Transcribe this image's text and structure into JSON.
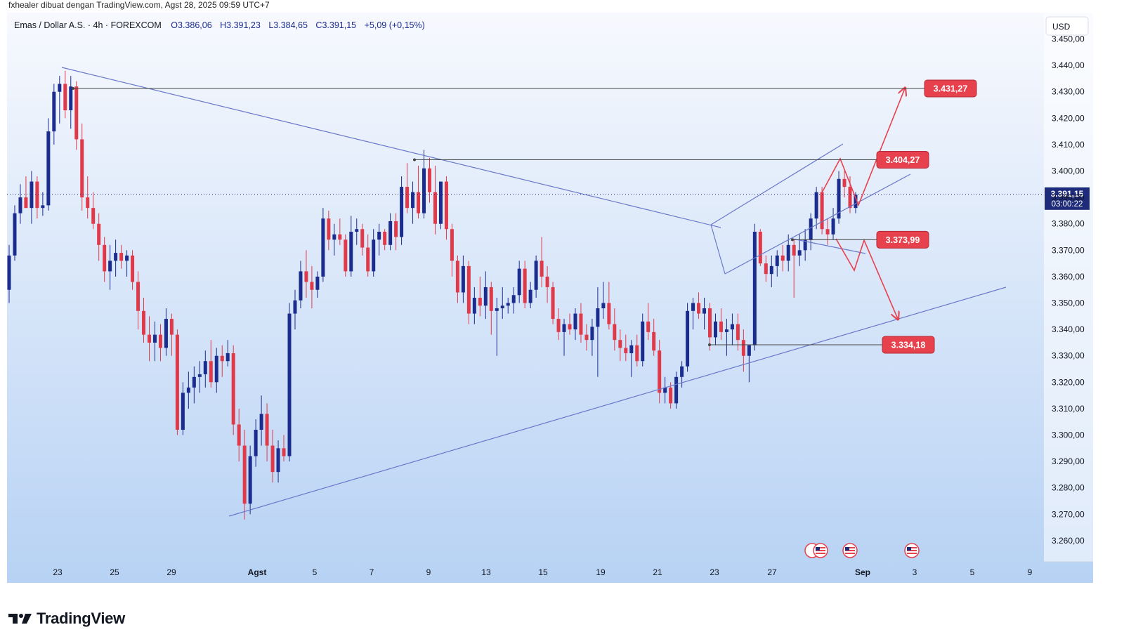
{
  "attribution": "fxhealer dibuat dengan TradingView.com, Agst 28, 2025 09:59 UTC+7",
  "brand": "TradingView",
  "colors": {
    "up": "#1b2c8f",
    "down": "#e03a4a",
    "line": "#6070c8",
    "hline": "#444444",
    "label": "#e8414e",
    "bg_top": "#f6f8fe",
    "bg_bottom": "#b9d4f5",
    "price_tag": "#1e2a7a"
  },
  "chart_data": {
    "type": "candlestick",
    "header": {
      "symbol": "Emas / Dollar A.S.",
      "interval": "4h",
      "exchange": "FOREXCOM",
      "open": "O3.386,06",
      "high": "H3.391,23",
      "low": "L3.384,65",
      "close": "C3.391,15",
      "change": "+5,09 (+0,15%)"
    },
    "currency": "USD",
    "y_axis": {
      "ylim": [
        3252,
        3452
      ],
      "ticks": [
        "3.260,00",
        "3.270,00",
        "3.280,00",
        "3.290,00",
        "3.300,00",
        "3.310,00",
        "3.320,00",
        "3.330,00",
        "3.340,00",
        "3.350,00",
        "3.360,00",
        "3.370,00",
        "3.380,00",
        "3.390,00",
        "3.400,00",
        "3.410,00",
        "3.420,00",
        "3.430,00",
        "3.440,00",
        "3.450,00"
      ]
    },
    "x_axis": {
      "labels": [
        "23",
        "25",
        "29",
        "Agst",
        "5",
        "7",
        "9",
        "13",
        "15",
        "19",
        "21",
        "23",
        "27",
        "Sep",
        "3",
        "5",
        "9"
      ]
    },
    "candles": [
      [
        3355,
        3372,
        3350,
        3368
      ],
      [
        3368,
        3387,
        3366,
        3384
      ],
      [
        3384,
        3395,
        3380,
        3390
      ],
      [
        3390,
        3398,
        3386,
        3386
      ],
      [
        3386,
        3400,
        3380,
        3396
      ],
      [
        3396,
        3398,
        3382,
        3386
      ],
      [
        3386,
        3392,
        3383,
        3387
      ],
      [
        3387,
        3420,
        3385,
        3415
      ],
      [
        3415,
        3433,
        3410,
        3430
      ],
      [
        3430,
        3436,
        3418,
        3433
      ],
      [
        3433,
        3438,
        3420,
        3423
      ],
      [
        3423,
        3436,
        3416,
        3432
      ],
      [
        3432,
        3434,
        3408,
        3412
      ],
      [
        3412,
        3418,
        3385,
        3390
      ],
      [
        3390,
        3398,
        3382,
        3386
      ],
      [
        3386,
        3392,
        3378,
        3380
      ],
      [
        3380,
        3384,
        3366,
        3372
      ],
      [
        3372,
        3375,
        3358,
        3362
      ],
      [
        3362,
        3372,
        3355,
        3366
      ],
      [
        3366,
        3374,
        3360,
        3369
      ],
      [
        3369,
        3372,
        3363,
        3366
      ],
      [
        3366,
        3370,
        3360,
        3368
      ],
      [
        3368,
        3370,
        3355,
        3358
      ],
      [
        3358,
        3362,
        3340,
        3347
      ],
      [
        3347,
        3352,
        3335,
        3338
      ],
      [
        3338,
        3345,
        3328,
        3335
      ],
      [
        3335,
        3343,
        3328,
        3338
      ],
      [
        3338,
        3342,
        3328,
        3333
      ],
      [
        3333,
        3348,
        3330,
        3344
      ],
      [
        3344,
        3346,
        3330,
        3338
      ],
      [
        3338,
        3340,
        3300,
        3302
      ],
      [
        3302,
        3320,
        3300,
        3316
      ],
      [
        3316,
        3324,
        3310,
        3318
      ],
      [
        3318,
        3326,
        3312,
        3322
      ],
      [
        3322,
        3328,
        3316,
        3323
      ],
      [
        3323,
        3332,
        3318,
        3328
      ],
      [
        3328,
        3336,
        3318,
        3320
      ],
      [
        3320,
        3333,
        3316,
        3330
      ],
      [
        3330,
        3334,
        3322,
        3328
      ],
      [
        3328,
        3336,
        3326,
        3331
      ],
      [
        3331,
        3334,
        3300,
        3304
      ],
      [
        3304,
        3310,
        3290,
        3296
      ],
      [
        3296,
        3302,
        3268,
        3274
      ],
      [
        3274,
        3296,
        3270,
        3292
      ],
      [
        3292,
        3306,
        3288,
        3302
      ],
      [
        3302,
        3315,
        3296,
        3308
      ],
      [
        3308,
        3312,
        3290,
        3296
      ],
      [
        3296,
        3302,
        3282,
        3286
      ],
      [
        3286,
        3298,
        3282,
        3295
      ],
      [
        3295,
        3300,
        3290,
        3292
      ],
      [
        3292,
        3350,
        3290,
        3346
      ],
      [
        3346,
        3355,
        3340,
        3351
      ],
      [
        3351,
        3366,
        3348,
        3362
      ],
      [
        3362,
        3370,
        3352,
        3358
      ],
      [
        3358,
        3364,
        3348,
        3355
      ],
      [
        3355,
        3362,
        3352,
        3360
      ],
      [
        3360,
        3386,
        3358,
        3382
      ],
      [
        3382,
        3385,
        3370,
        3374
      ],
      [
        3374,
        3380,
        3368,
        3376
      ],
      [
        3376,
        3382,
        3372,
        3374
      ],
      [
        3374,
        3376,
        3360,
        3362
      ],
      [
        3362,
        3383,
        3360,
        3377
      ],
      [
        3377,
        3382,
        3372,
        3378
      ],
      [
        3378,
        3380,
        3368,
        3371
      ],
      [
        3371,
        3376,
        3360,
        3362
      ],
      [
        3362,
        3378,
        3360,
        3374
      ],
      [
        3374,
        3380,
        3368,
        3377
      ],
      [
        3377,
        3378,
        3370,
        3372
      ],
      [
        3372,
        3384,
        3370,
        3381
      ],
      [
        3381,
        3384,
        3370,
        3375
      ],
      [
        3375,
        3398,
        3372,
        3394
      ],
      [
        3394,
        3403,
        3384,
        3386
      ],
      [
        3386,
        3396,
        3380,
        3392
      ],
      [
        3392,
        3402,
        3382,
        3384
      ],
      [
        3384,
        3408,
        3382,
        3401
      ],
      [
        3401,
        3405,
        3388,
        3392
      ],
      [
        3392,
        3402,
        3376,
        3380
      ],
      [
        3380,
        3396,
        3378,
        3396
      ],
      [
        3396,
        3398,
        3374,
        3378
      ],
      [
        3378,
        3380,
        3360,
        3366
      ],
      [
        3366,
        3368,
        3350,
        3354
      ],
      [
        3354,
        3368,
        3350,
        3364
      ],
      [
        3364,
        3366,
        3342,
        3346
      ],
      [
        3346,
        3356,
        3342,
        3352
      ],
      [
        3352,
        3360,
        3345,
        3349
      ],
      [
        3349,
        3362,
        3344,
        3356
      ],
      [
        3356,
        3358,
        3338,
        3347
      ],
      [
        3347,
        3352,
        3330,
        3348
      ],
      [
        3348,
        3356,
        3344,
        3349
      ],
      [
        3349,
        3352,
        3346,
        3350
      ],
      [
        3350,
        3356,
        3346,
        3353
      ],
      [
        3353,
        3366,
        3350,
        3363
      ],
      [
        3363,
        3366,
        3348,
        3350
      ],
      [
        3350,
        3358,
        3348,
        3355
      ],
      [
        3355,
        3368,
        3352,
        3366
      ],
      [
        3366,
        3375,
        3356,
        3360
      ],
      [
        3360,
        3364,
        3350,
        3356
      ],
      [
        3356,
        3358,
        3342,
        3344
      ],
      [
        3344,
        3348,
        3336,
        3339
      ],
      [
        3339,
        3344,
        3330,
        3342
      ],
      [
        3342,
        3346,
        3338,
        3340
      ],
      [
        3340,
        3348,
        3336,
        3346
      ],
      [
        3346,
        3350,
        3335,
        3338
      ],
      [
        3338,
        3342,
        3332,
        3336
      ],
      [
        3336,
        3344,
        3330,
        3341
      ],
      [
        3341,
        3356,
        3322,
        3348
      ],
      [
        3348,
        3358,
        3344,
        3350
      ],
      [
        3350,
        3358,
        3340,
        3342
      ],
      [
        3342,
        3348,
        3332,
        3336
      ],
      [
        3336,
        3340,
        3328,
        3333
      ],
      [
        3333,
        3338,
        3328,
        3331
      ],
      [
        3331,
        3336,
        3322,
        3334
      ],
      [
        3334,
        3338,
        3326,
        3328
      ],
      [
        3328,
        3346,
        3326,
        3343
      ],
      [
        3343,
        3350,
        3336,
        3339
      ],
      [
        3339,
        3344,
        3330,
        3332
      ],
      [
        3332,
        3336,
        3312,
        3316
      ],
      [
        3316,
        3322,
        3312,
        3318
      ],
      [
        3318,
        3320,
        3310,
        3312
      ],
      [
        3312,
        3324,
        3310,
        3322
      ],
      [
        3322,
        3328,
        3318,
        3326
      ],
      [
        3326,
        3350,
        3324,
        3347
      ],
      [
        3347,
        3352,
        3340,
        3350
      ],
      [
        3350,
        3354,
        3344,
        3346
      ],
      [
        3346,
        3352,
        3340,
        3348
      ],
      [
        3348,
        3350,
        3332,
        3337
      ],
      [
        3337,
        3346,
        3334,
        3343
      ],
      [
        3343,
        3348,
        3336,
        3339
      ],
      [
        3339,
        3344,
        3330,
        3340
      ],
      [
        3340,
        3346,
        3334,
        3342
      ],
      [
        3342,
        3346,
        3332,
        3336
      ],
      [
        3336,
        3340,
        3324,
        3330
      ],
      [
        3330,
        3334,
        3320,
        3334
      ],
      [
        3334,
        3380,
        3332,
        3377
      ],
      [
        3377,
        3378,
        3364,
        3365
      ],
      [
        3365,
        3368,
        3358,
        3361
      ],
      [
        3361,
        3368,
        3356,
        3364
      ],
      [
        3364,
        3370,
        3360,
        3368
      ],
      [
        3368,
        3372,
        3362,
        3366
      ],
      [
        3366,
        3376,
        3362,
        3372
      ],
      [
        3372,
        3374,
        3352,
        3368
      ],
      [
        3368,
        3376,
        3364,
        3370
      ],
      [
        3370,
        3378,
        3366,
        3374
      ],
      [
        3374,
        3384,
        3370,
        3382
      ],
      [
        3382,
        3394,
        3378,
        3392
      ],
      [
        3392,
        3394,
        3376,
        3378
      ],
      [
        3378,
        3382,
        3372,
        3376
      ],
      [
        3376,
        3386,
        3374,
        3382
      ],
      [
        3382,
        3400,
        3380,
        3397
      ],
      [
        3397,
        3400,
        3390,
        3394
      ],
      [
        3394,
        3398,
        3384,
        3386
      ],
      [
        3386,
        3392,
        3384,
        3391
      ]
    ],
    "annotations": {
      "levels": [
        {
          "label": "3.431,27",
          "value": 3431.27
        },
        {
          "label": "3.404,27",
          "value": 3404.27
        },
        {
          "label": "3.373,99",
          "value": 3373.99
        },
        {
          "label": "3.334,18",
          "value": 3334.18
        }
      ],
      "current_price": {
        "label": "3.391,15",
        "timer": "03:00:22",
        "value": 3391.15
      }
    }
  }
}
